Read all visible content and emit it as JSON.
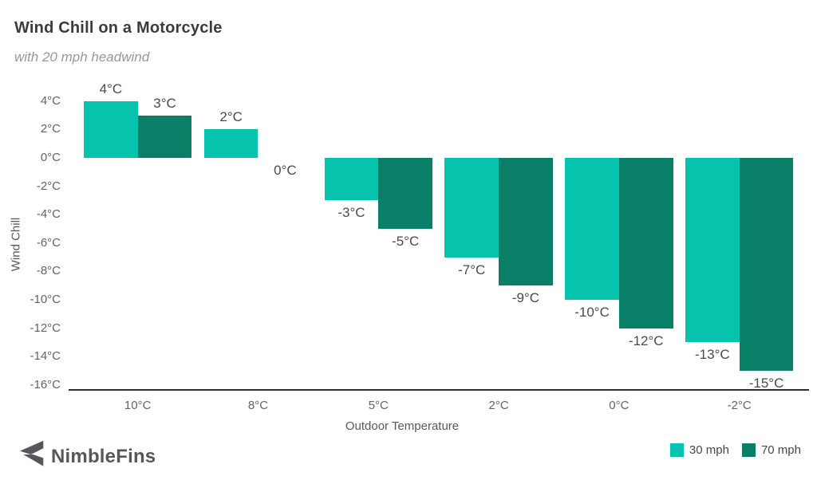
{
  "header": {
    "title": "Wind Chill on a Motorcycle",
    "subtitle": "with 20 mph headwind"
  },
  "branding": {
    "logo_text": "NimbleFins",
    "logo_icon": "fins-arrow-icon",
    "logo_color": "#55575b"
  },
  "legend": [
    {
      "label": "30 mph",
      "color": "#05C3AC"
    },
    {
      "label": "70 mph",
      "color": "#0A7F68"
    }
  ],
  "colors": {
    "series_30mph": "#05C3AC",
    "series_70mph": "#0A7F68",
    "axis_line": "#2f2f2f",
    "title_text": "#3b3b3b",
    "subtitle_text": "#979797",
    "tick_text": "#636363",
    "data_label_text": "#4a4a4a"
  },
  "chart_data": {
    "type": "bar",
    "title": "Wind Chill on a Motorcycle",
    "subtitle": "with 20 mph headwind",
    "xlabel": "Outdoor Temperature",
    "ylabel": "Wind Chill",
    "categories": [
      "10°C",
      "8°C",
      "5°C",
      "2°C",
      "0°C",
      "-2°C"
    ],
    "series": [
      {
        "name": "30 mph",
        "color": "#05C3AC",
        "values": [
          4,
          2,
          -3,
          -7,
          -10,
          -13
        ],
        "labels": [
          "4°C",
          "2°C",
          "-3°C",
          "-7°C",
          "-10°C",
          "-13°C"
        ]
      },
      {
        "name": "70 mph",
        "color": "#0A7F68",
        "values": [
          3,
          0,
          -5,
          -9,
          -12,
          -15
        ],
        "labels": [
          "3°C",
          "0°C",
          "-5°C",
          "-9°C",
          "-12°C",
          "-15°C"
        ]
      }
    ],
    "ylim": [
      -16,
      4
    ],
    "ytick_step": 2,
    "yticks": [
      "4°C",
      "2°C",
      "0°C",
      "-2°C",
      "-4°C",
      "-6°C",
      "-8°C",
      "-10°C",
      "-12°C",
      "-14°C",
      "-16°C"
    ],
    "grid": false,
    "legend_position": "bottom-right",
    "data_labels": true
  }
}
